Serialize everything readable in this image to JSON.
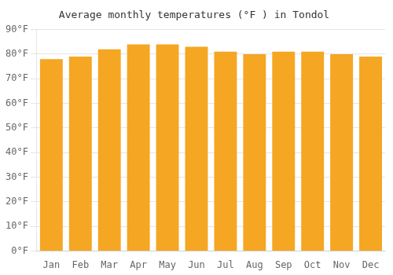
{
  "chart_data": {
    "type": "bar",
    "title": "Average monthly temperatures (°F ) in Tondol",
    "categories": [
      "Jan",
      "Feb",
      "Mar",
      "Apr",
      "May",
      "Jun",
      "Jul",
      "Aug",
      "Sep",
      "Oct",
      "Nov",
      "Dec"
    ],
    "values": [
      78,
      79,
      82,
      84,
      84,
      83,
      81,
      80,
      81,
      81,
      80,
      79
    ],
    "color": "#F5A623",
    "ylim": [
      0,
      90
    ],
    "yticks": [
      {
        "value": 0,
        "label": "0°F"
      },
      {
        "value": 10,
        "label": "10°F"
      },
      {
        "value": 20,
        "label": "20°F"
      },
      {
        "value": 30,
        "label": "30°F"
      },
      {
        "value": 40,
        "label": "40°F"
      },
      {
        "value": 50,
        "label": "50°F"
      },
      {
        "value": 60,
        "label": "60°F"
      },
      {
        "value": 70,
        "label": "70°F"
      },
      {
        "value": 80,
        "label": "80°F"
      },
      {
        "value": 90,
        "label": "90°F"
      }
    ],
    "grid": true
  }
}
